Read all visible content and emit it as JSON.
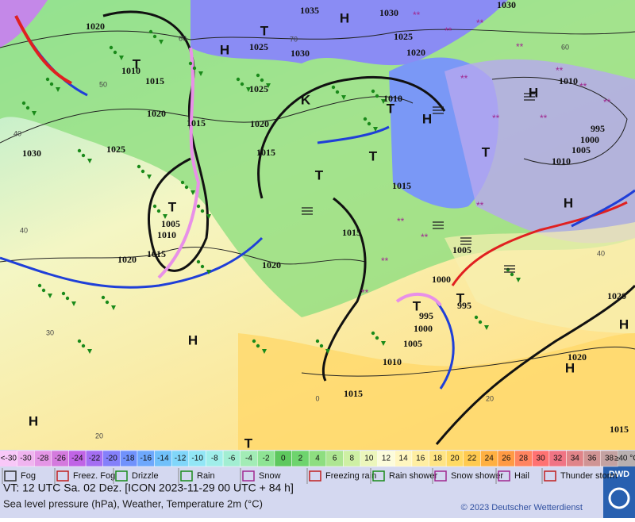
{
  "map": {
    "isobar_labels": [
      "1020",
      "1010",
      "1015",
      "1020",
      "1015",
      "1030",
      "1025",
      "1005",
      "1010",
      "1015",
      "1020",
      "1025",
      "1030",
      "1035",
      "1030",
      "1025",
      "1020",
      "1025",
      "1020",
      "1015",
      "1010",
      "1015",
      "1015",
      "1020",
      "1005",
      "1000",
      "995",
      "995",
      "1000",
      "1005",
      "1010",
      "1015",
      "1020",
      "1020",
      "1010",
      "995",
      "1000",
      "1005",
      "1010",
      "1030",
      "1015"
    ],
    "centers": [
      "T",
      "T",
      "H",
      "H",
      "K",
      "T",
      "H",
      "T",
      "T",
      "T",
      "T",
      "T",
      "T",
      "H",
      "H",
      "H",
      "H",
      "H",
      "H",
      "T"
    ],
    "isotherm_labels": [
      "60",
      "50",
      "40",
      "40",
      "30",
      "20",
      "0",
      "20",
      "40",
      "60",
      "70"
    ]
  },
  "scale": {
    "low_label": "<-30",
    "values": [
      -30,
      -28,
      -26,
      -24,
      -22,
      -20,
      -18,
      -16,
      -14,
      -12,
      -10,
      -8,
      -6,
      -4,
      -2,
      0,
      2,
      4,
      6,
      8,
      10,
      12,
      14,
      16,
      18,
      20,
      22,
      24,
      26,
      28,
      30,
      32,
      34,
      36,
      38
    ],
    "colors": [
      "#f0b4f0",
      "#e496e6",
      "#d47ade",
      "#c064e6",
      "#a46ef2",
      "#8480fa",
      "#7092fc",
      "#6ea8fc",
      "#70c0fa",
      "#80d6fa",
      "#92e6f6",
      "#a0eeea",
      "#a2eed2",
      "#a2ecb6",
      "#8ee494",
      "#5ec85e",
      "#6ed46e",
      "#8ede80",
      "#aee692",
      "#cef0a4",
      "#ecf6bc",
      "#fcfcdc",
      "#fff6c0",
      "#ffeea2",
      "#ffe484",
      "#ffda64",
      "#ffca50",
      "#ffb042",
      "#ff9a44",
      "#ff8460",
      "#ff7272",
      "#f07484",
      "#e08488",
      "#d09494",
      "#c4a2a2"
    ],
    "high_label": "≥40 °C"
  },
  "legend": [
    "Fog",
    "Freez. Fog",
    "Drizzle",
    "Rain",
    "Snow",
    "Freezing rain",
    "Rain shower",
    "Snow shower",
    "Hail",
    "Thunder storm"
  ],
  "footer": {
    "valid_time": "VT: 12 UTC Sa.  02 Dez. [ICON 2023-11-29  00 UTC + 84 h]",
    "description": "Sea level pressure (hPa), Weather, Temperature 2m (°C)",
    "copyright": "© 2023 Deutscher Wetterdienst",
    "logo": "DWD"
  }
}
